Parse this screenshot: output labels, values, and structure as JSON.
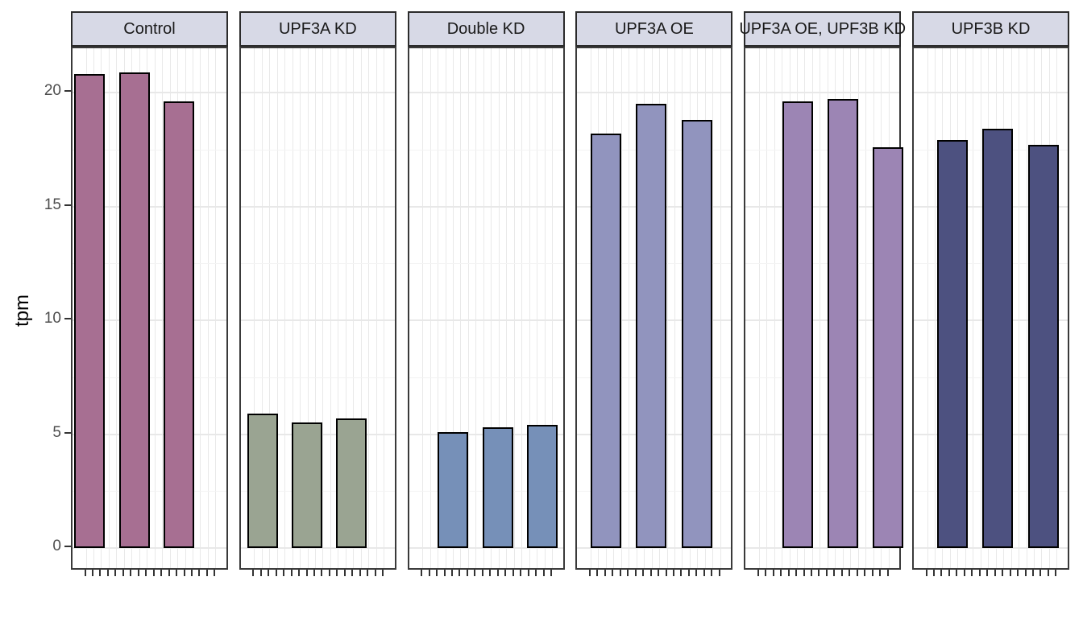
{
  "chart_data": {
    "type": "bar",
    "title": "",
    "ylabel": "tpm",
    "xlabel": "",
    "ylim": [
      0,
      22
    ],
    "yticks": [
      0,
      5,
      10,
      15,
      20
    ],
    "legend": "none",
    "grid": "horizontal major+minor, vertical per-sample",
    "x_tick_count_per_panel": 18,
    "bars_per_panel": 3,
    "facets": [
      {
        "label": "Control",
        "bar_color": "#a76f92",
        "values": [
          20.8,
          20.9,
          19.6
        ],
        "x_pct": [
          11.0,
          39.5,
          67.5
        ]
      },
      {
        "label": "UPF3A KD",
        "bar_color": "#9aa492",
        "values": [
          5.9,
          5.5,
          5.7
        ],
        "x_pct": [
          14.0,
          42.0,
          70.5
        ]
      },
      {
        "label": "Double KD",
        "bar_color": "#7690b8",
        "values": [
          5.1,
          5.3,
          5.4
        ],
        "x_pct": [
          28.0,
          56.5,
          85.0
        ]
      },
      {
        "label": "UPF3A OE",
        "bar_color": "#9194be",
        "values": [
          18.2,
          19.5,
          18.8
        ],
        "x_pct": [
          18.5,
          47.0,
          76.0
        ]
      },
      {
        "label": "UPF3A OE, UPF3B KD",
        "bar_color": "#9c85b4",
        "values": [
          19.6,
          19.7,
          17.6
        ],
        "x_pct": [
          33.0,
          62.0,
          90.5
        ]
      },
      {
        "label": "UPF3B KD",
        "bar_color": "#4d5180",
        "values": [
          17.9,
          18.4,
          17.7
        ],
        "x_pct": [
          24.5,
          53.5,
          82.5
        ]
      }
    ],
    "colors": {
      "strip_fill": "#d7d9e6",
      "strip_text": "#1a1a1a",
      "panel_border": "#3a3a3a",
      "bar_outline": "#000000",
      "grid_major": "#e8e8e8",
      "grid_minor": "#f3f3f3",
      "grid_vertical": "#e9e9e9",
      "tick": "#333333",
      "tick_label": "#4d4d4d"
    }
  }
}
